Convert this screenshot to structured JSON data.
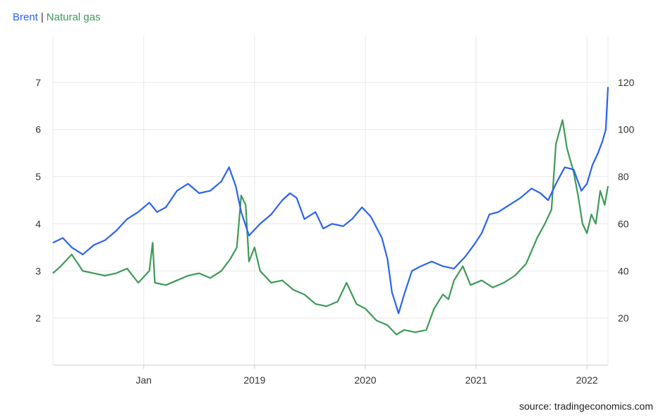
{
  "legend": {
    "brent": "Brent",
    "separator": "|",
    "gas": "Natural gas"
  },
  "source": "source: tradingeconomics.com",
  "colors": {
    "brent": "#2b63f0",
    "gas": "#3d9a57",
    "grid": "#e8e8e8",
    "axis": "#cccccc"
  },
  "chart_data": {
    "type": "line",
    "x_axis": {
      "ticks": [
        "Jan",
        "2019",
        "2020",
        "2021",
        "2022"
      ],
      "tick_positions": [
        2018.0,
        2019.0,
        2020.0,
        2021.0,
        2022.0
      ],
      "range": [
        2017.18,
        2022.19
      ]
    },
    "y_left": {
      "ticks": [
        2,
        3,
        4,
        5,
        6,
        7
      ],
      "range": [
        1,
        8
      ],
      "series": "Natural gas"
    },
    "y_right": {
      "ticks": [
        20,
        40,
        60,
        80,
        100,
        120
      ],
      "range": [
        0,
        140
      ],
      "series": "Brent"
    },
    "grid": true,
    "series": [
      {
        "name": "Brent",
        "axis": "right",
        "points": [
          [
            2017.18,
            52
          ],
          [
            2017.27,
            54
          ],
          [
            2017.35,
            50
          ],
          [
            2017.45,
            47
          ],
          [
            2017.55,
            51
          ],
          [
            2017.65,
            53
          ],
          [
            2017.75,
            57
          ],
          [
            2017.85,
            62
          ],
          [
            2017.95,
            65
          ],
          [
            2018.05,
            69
          ],
          [
            2018.12,
            65
          ],
          [
            2018.2,
            67
          ],
          [
            2018.3,
            74
          ],
          [
            2018.4,
            77
          ],
          [
            2018.5,
            73
          ],
          [
            2018.6,
            74
          ],
          [
            2018.7,
            78
          ],
          [
            2018.77,
            84
          ],
          [
            2018.83,
            76
          ],
          [
            2018.88,
            65
          ],
          [
            2018.95,
            55
          ],
          [
            2019.05,
            60
          ],
          [
            2019.15,
            64
          ],
          [
            2019.25,
            70
          ],
          [
            2019.32,
            73
          ],
          [
            2019.38,
            71
          ],
          [
            2019.45,
            62
          ],
          [
            2019.55,
            65
          ],
          [
            2019.62,
            58
          ],
          [
            2019.7,
            60
          ],
          [
            2019.8,
            59
          ],
          [
            2019.88,
            62
          ],
          [
            2019.97,
            67
          ],
          [
            2020.05,
            63
          ],
          [
            2020.15,
            54
          ],
          [
            2020.2,
            45
          ],
          [
            2020.24,
            31
          ],
          [
            2020.28,
            25
          ],
          [
            2020.3,
            22
          ],
          [
            2020.35,
            30
          ],
          [
            2020.42,
            40
          ],
          [
            2020.5,
            42
          ],
          [
            2020.6,
            44
          ],
          [
            2020.7,
            42
          ],
          [
            2020.8,
            41
          ],
          [
            2020.9,
            46
          ],
          [
            2020.98,
            51
          ],
          [
            2021.05,
            56
          ],
          [
            2021.12,
            64
          ],
          [
            2021.2,
            65
          ],
          [
            2021.3,
            68
          ],
          [
            2021.4,
            71
          ],
          [
            2021.5,
            75
          ],
          [
            2021.58,
            73
          ],
          [
            2021.65,
            70
          ],
          [
            2021.72,
            77
          ],
          [
            2021.8,
            84
          ],
          [
            2021.88,
            83
          ],
          [
            2021.95,
            74
          ],
          [
            2022.0,
            77
          ],
          [
            2022.05,
            85
          ],
          [
            2022.1,
            90
          ],
          [
            2022.14,
            95
          ],
          [
            2022.17,
            100
          ],
          [
            2022.19,
            118
          ]
        ]
      },
      {
        "name": "Natural gas",
        "axis": "left",
        "points": [
          [
            2017.18,
            2.95
          ],
          [
            2017.25,
            3.1
          ],
          [
            2017.35,
            3.35
          ],
          [
            2017.45,
            3.0
          ],
          [
            2017.55,
            2.95
          ],
          [
            2017.65,
            2.9
          ],
          [
            2017.75,
            2.95
          ],
          [
            2017.85,
            3.05
          ],
          [
            2017.95,
            2.75
          ],
          [
            2018.05,
            3.0
          ],
          [
            2018.08,
            3.6
          ],
          [
            2018.1,
            2.75
          ],
          [
            2018.2,
            2.7
          ],
          [
            2018.3,
            2.8
          ],
          [
            2018.4,
            2.9
          ],
          [
            2018.5,
            2.95
          ],
          [
            2018.6,
            2.85
          ],
          [
            2018.7,
            3.0
          ],
          [
            2018.78,
            3.25
          ],
          [
            2018.84,
            3.5
          ],
          [
            2018.88,
            4.6
          ],
          [
            2018.92,
            4.4
          ],
          [
            2018.95,
            3.2
          ],
          [
            2019.0,
            3.5
          ],
          [
            2019.05,
            3.0
          ],
          [
            2019.15,
            2.75
          ],
          [
            2019.25,
            2.8
          ],
          [
            2019.35,
            2.6
          ],
          [
            2019.45,
            2.5
          ],
          [
            2019.55,
            2.3
          ],
          [
            2019.65,
            2.25
          ],
          [
            2019.75,
            2.35
          ],
          [
            2019.83,
            2.75
          ],
          [
            2019.92,
            2.3
          ],
          [
            2020.0,
            2.2
          ],
          [
            2020.1,
            1.95
          ],
          [
            2020.2,
            1.85
          ],
          [
            2020.28,
            1.65
          ],
          [
            2020.35,
            1.75
          ],
          [
            2020.45,
            1.7
          ],
          [
            2020.55,
            1.75
          ],
          [
            2020.62,
            2.2
          ],
          [
            2020.7,
            2.5
          ],
          [
            2020.75,
            2.4
          ],
          [
            2020.8,
            2.8
          ],
          [
            2020.88,
            3.1
          ],
          [
            2020.95,
            2.7
          ],
          [
            2021.05,
            2.8
          ],
          [
            2021.15,
            2.65
          ],
          [
            2021.25,
            2.75
          ],
          [
            2021.35,
            2.9
          ],
          [
            2021.45,
            3.15
          ],
          [
            2021.55,
            3.7
          ],
          [
            2021.62,
            4.0
          ],
          [
            2021.68,
            4.3
          ],
          [
            2021.72,
            5.7
          ],
          [
            2021.78,
            6.2
          ],
          [
            2021.82,
            5.6
          ],
          [
            2021.88,
            5.1
          ],
          [
            2021.92,
            4.6
          ],
          [
            2021.96,
            4.0
          ],
          [
            2022.0,
            3.8
          ],
          [
            2022.04,
            4.2
          ],
          [
            2022.08,
            4.0
          ],
          [
            2022.12,
            4.7
          ],
          [
            2022.16,
            4.4
          ],
          [
            2022.19,
            4.8
          ]
        ]
      }
    ]
  }
}
